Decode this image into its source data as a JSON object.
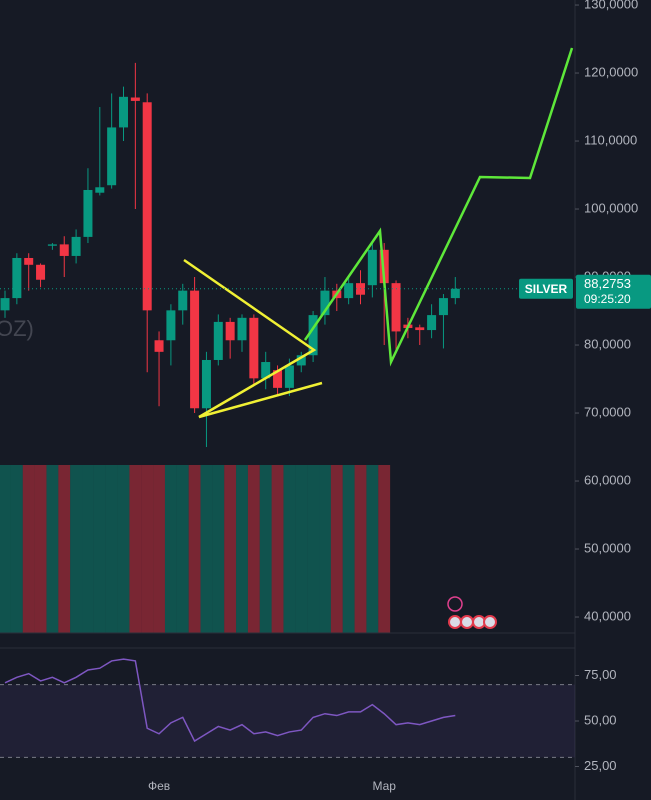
{
  "chart_data": [
    {
      "type": "candlestick",
      "legend_fragment": "OZ)",
      "symbol": "SILVER",
      "countdown": "09:25:20",
      "last_price": {
        "value": 88.2753,
        "label": "88,2753"
      },
      "up_color": "#089981",
      "down_color": "#f23645",
      "open": [
        85.1,
        86.9,
        92.8,
        91.8,
        94.6,
        94.8,
        93.1,
        95.9,
        102.4,
        103.5,
        112,
        116.4,
        115.7,
        80.7,
        80.7,
        85.1,
        88,
        70.7,
        77.8,
        83.4,
        80.7,
        84,
        75.1,
        76.3,
        73.7,
        77,
        78.5,
        84.4,
        88,
        86.9,
        89.1,
        88.8,
        94,
        89.1,
        83,
        82.6,
        82.2,
        84.4,
        86.9
      ],
      "high": [
        88,
        93.5,
        93.5,
        92,
        95,
        96,
        97,
        106,
        115,
        117,
        118,
        121.5,
        117,
        82,
        86,
        89,
        90,
        79,
        84.5,
        84,
        84.5,
        84.5,
        79,
        77,
        78,
        79,
        85,
        90,
        89,
        90,
        91,
        95,
        95,
        89.5,
        84,
        83,
        86,
        87.5,
        90
      ],
      "low": [
        84,
        86,
        88,
        88.5,
        94,
        90,
        92,
        95,
        102,
        103,
        110,
        100,
        76,
        71,
        77,
        83,
        70,
        65,
        77,
        78,
        79,
        74,
        73.5,
        72.5,
        72.5,
        76,
        77.5,
        83,
        85,
        86,
        86,
        87,
        80,
        79,
        81,
        80,
        81,
        79.5,
        86
      ],
      "close": [
        86.9,
        92.8,
        91.8,
        89.6,
        94.8,
        93.1,
        95.9,
        102.8,
        103.2,
        112,
        116.5,
        115.9,
        85.1,
        79,
        85.1,
        88,
        70.7,
        77.8,
        83.4,
        80.7,
        84,
        75.1,
        77.5,
        73.7,
        77,
        78.5,
        84.4,
        88,
        86.9,
        89.1,
        87.4,
        94,
        89.1,
        82,
        82.5,
        82.2,
        84.4,
        86.9,
        88.2753
      ],
      "ylim": [
        37.65,
        130.74
      ],
      "yticks": [
        {
          "value": 130,
          "label": "130,0000"
        },
        {
          "value": 120,
          "label": "120,0000"
        },
        {
          "value": 110,
          "label": "110,0000"
        },
        {
          "value": 100,
          "label": "100,0000"
        },
        {
          "value": 90,
          "label": "90,0000"
        },
        {
          "value": 80,
          "label": "80,0000"
        },
        {
          "value": 70,
          "label": "70,0000"
        },
        {
          "value": 60,
          "label": "60,0000"
        },
        {
          "value": 50,
          "label": "50,0000"
        },
        {
          "value": 40,
          "label": "40,0000"
        }
      ]
    },
    {
      "type": "line",
      "color": "#7e57c2",
      "categories": [
        null,
        null,
        null,
        null,
        null,
        null,
        null,
        null,
        null,
        null,
        null,
        null,
        null,
        "Фев",
        null,
        null,
        null,
        null,
        null,
        null,
        null,
        null,
        null,
        null,
        null,
        null,
        null,
        null,
        null,
        null,
        null,
        null,
        "Мар",
        null,
        null,
        null,
        null,
        null,
        null
      ],
      "values": [
        71,
        74,
        76,
        72,
        74,
        71,
        74,
        78,
        79,
        83,
        84,
        83,
        46,
        43,
        49,
        52,
        39,
        43,
        47,
        45,
        48,
        43,
        44,
        42,
        44,
        45,
        52,
        54,
        53,
        55,
        55,
        59,
        54,
        48,
        49,
        48,
        50,
        52,
        53
      ],
      "band": [
        30,
        70
      ],
      "ylim": [
        12.1,
        90.1
      ],
      "yticks": [
        {
          "value": 75,
          "label": "75,00"
        },
        {
          "value": 50,
          "label": "50,00"
        },
        {
          "value": 25,
          "label": "25,00"
        }
      ]
    }
  ]
}
